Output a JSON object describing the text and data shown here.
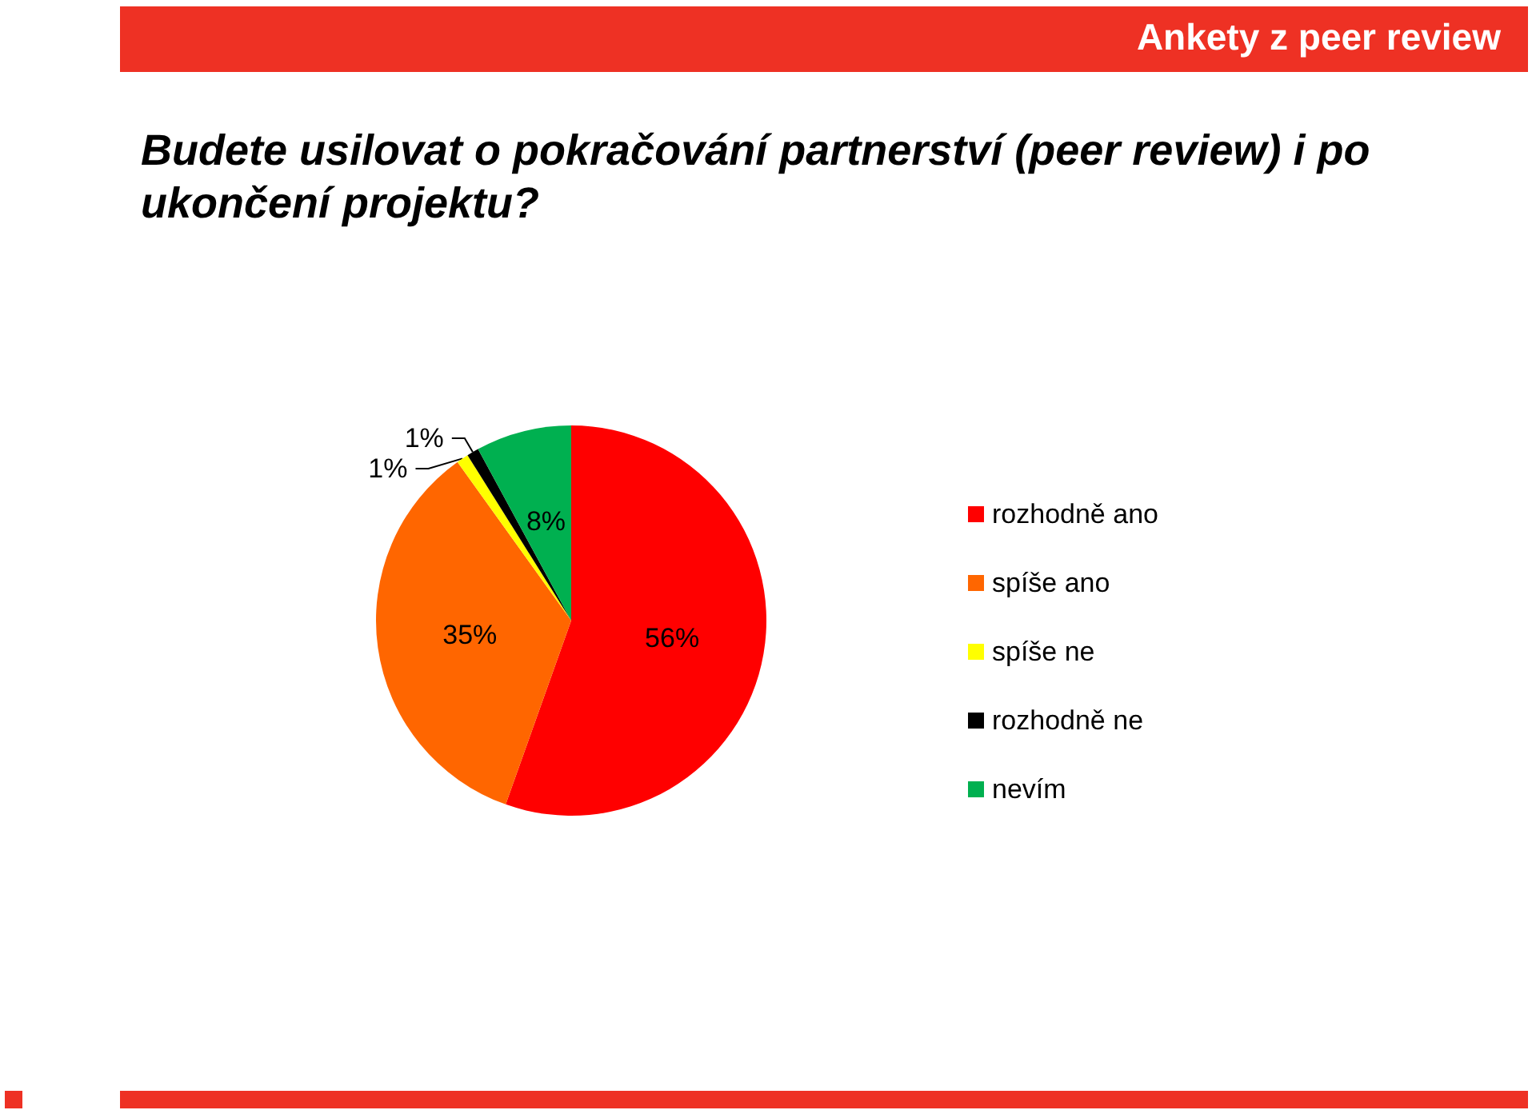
{
  "chart_data": {
    "type": "pie",
    "title": "Budete usilovat o pokračování partnerství (peer review) i po ukončení projektu?",
    "subtitle": "Ankety z peer review",
    "categories": [
      "rozhodně ano",
      "spíše ano",
      "spíše ne",
      "rozhodně ne",
      "nevím"
    ],
    "values": [
      56,
      35,
      1,
      1,
      8
    ],
    "value_labels": [
      "56%",
      "35%",
      "1%",
      "1%",
      "8%"
    ],
    "colors": [
      "#ff0000",
      "#ff6600",
      "#ffff00",
      "#000000",
      "#00b050"
    ],
    "legend": "right"
  }
}
